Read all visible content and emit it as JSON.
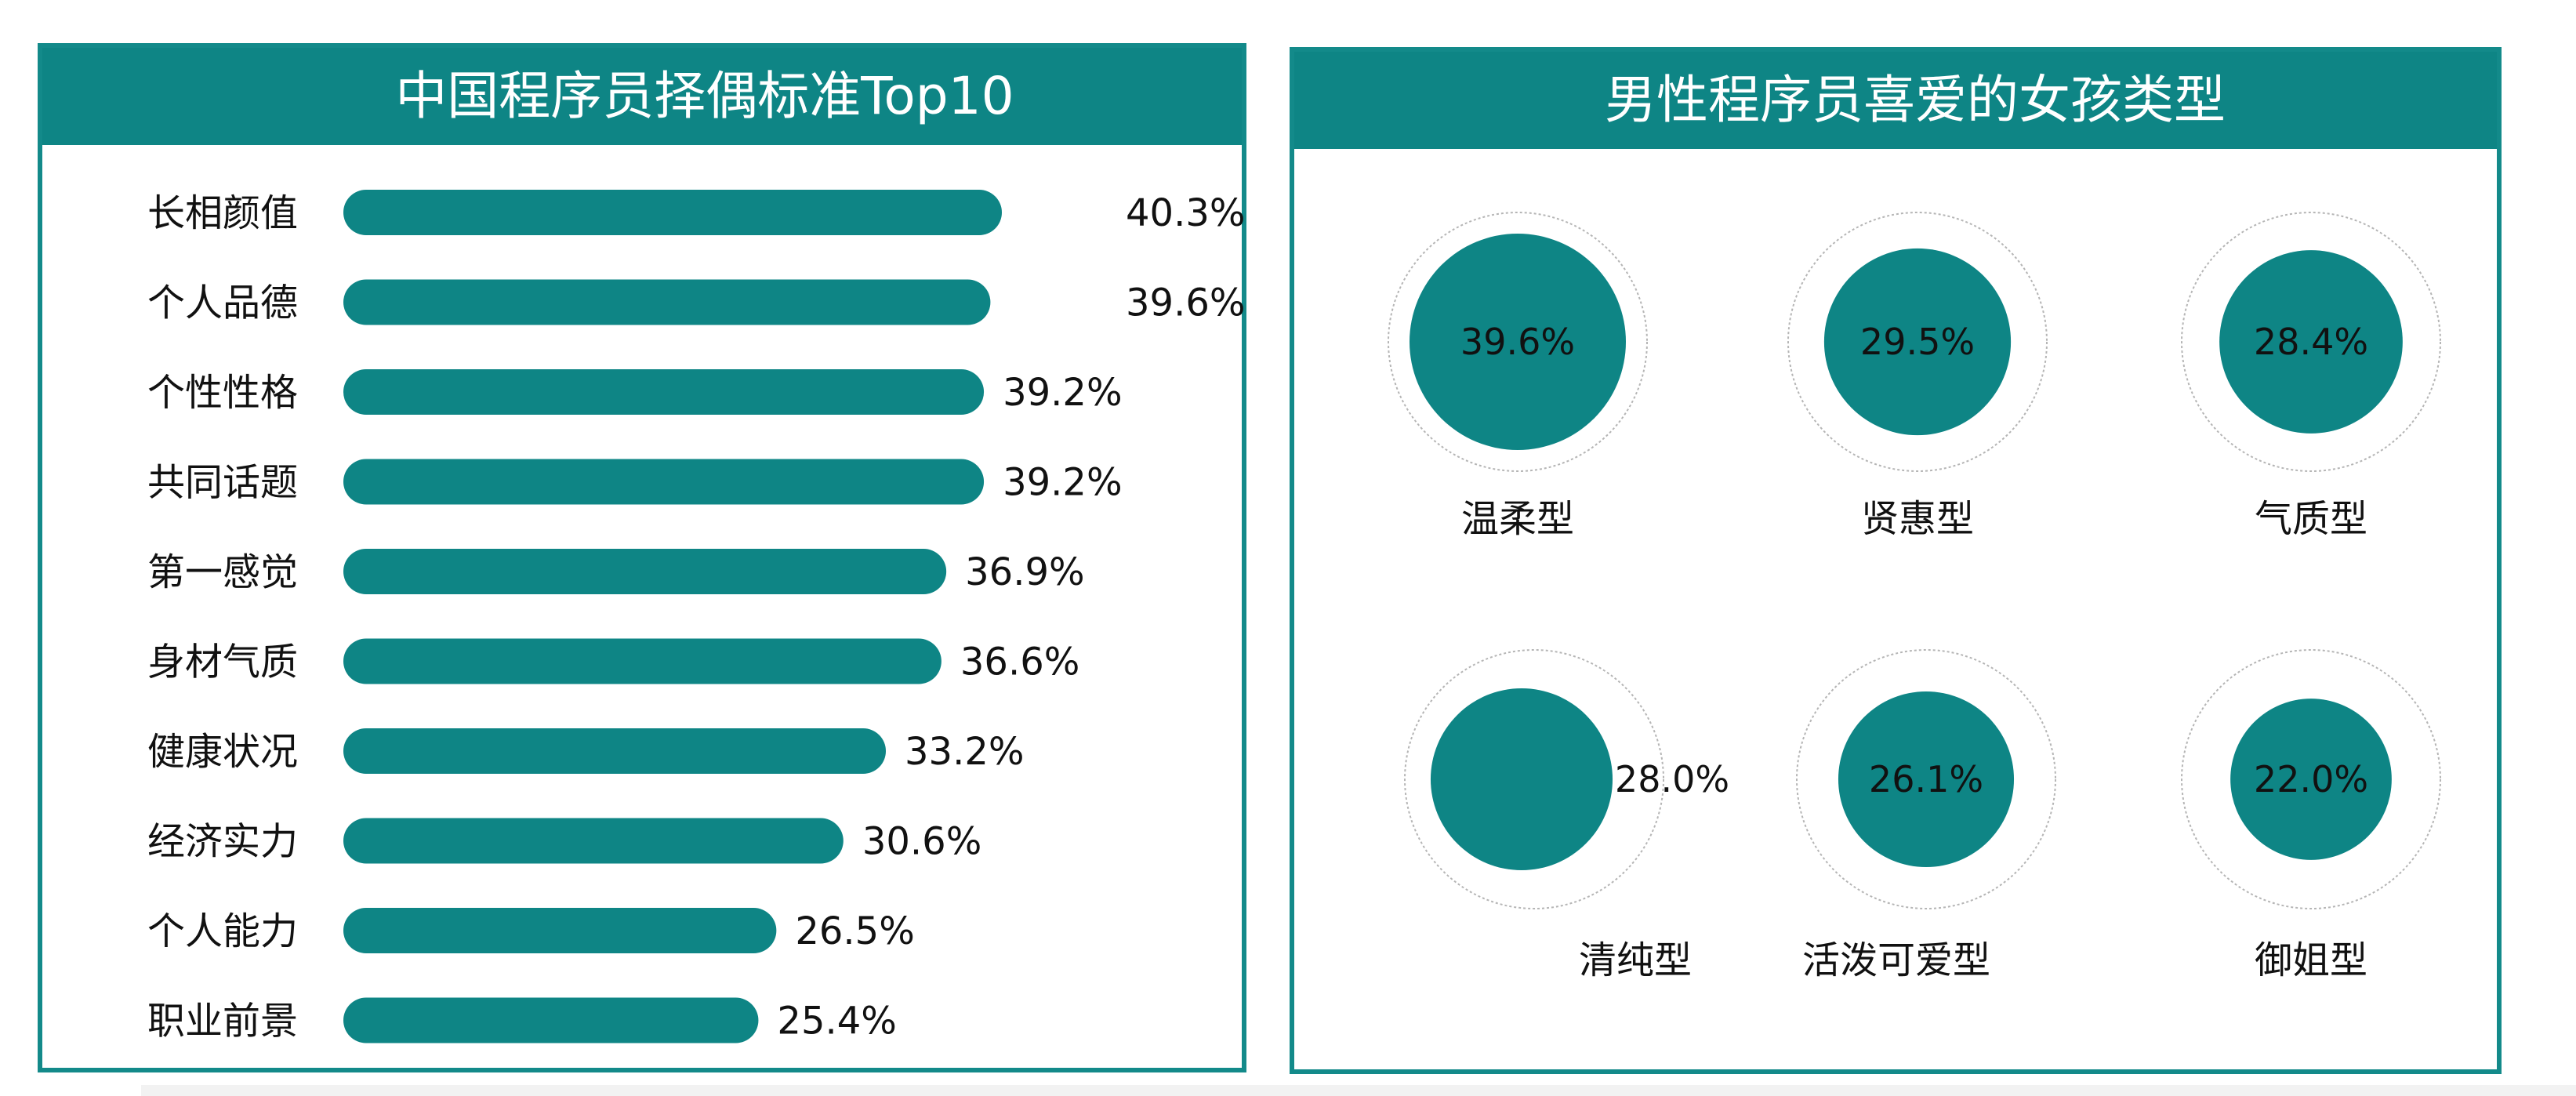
{
  "left_panel": {
    "title": "中国程序员择偶标准Top10"
  },
  "right_panel": {
    "title": "男性程序员喜爱的女孩类型"
  },
  "colors": {
    "accent": "#0e8585",
    "border": "#138a8a",
    "ring": "#b5b5b5"
  },
  "chart_data": [
    {
      "type": "bar",
      "orientation": "horizontal",
      "title": "中国程序员择偶标准Top10",
      "categories": [
        "长相颜值",
        "个人品德",
        "个性性格",
        "共同话题",
        "第一感觉",
        "身材气质",
        "健康状况",
        "经济实力",
        "个人能力",
        "职业前景"
      ],
      "values": [
        40.3,
        39.6,
        39.2,
        39.2,
        36.9,
        36.6,
        33.2,
        30.6,
        26.5,
        25.4
      ],
      "value_labels": [
        "40.3%",
        "39.6%",
        "39.2%",
        "39.2%",
        "36.9%",
        "36.6%",
        "33.2%",
        "30.6%",
        "26.5%",
        "25.4%"
      ],
      "unit": "%"
    },
    {
      "type": "bubble",
      "title": "男性程序员喜爱的女孩类型",
      "categories": [
        "温柔型",
        "贤惠型",
        "气质型",
        "清纯型",
        "活泼可爱型",
        "御姐型"
      ],
      "values": [
        39.6,
        29.5,
        28.4,
        28.0,
        26.1,
        22.0
      ],
      "value_labels": [
        "39.6%",
        "29.5%",
        "28.4%",
        "28.0%",
        "26.1%",
        "22.0%"
      ],
      "unit": "%"
    }
  ]
}
